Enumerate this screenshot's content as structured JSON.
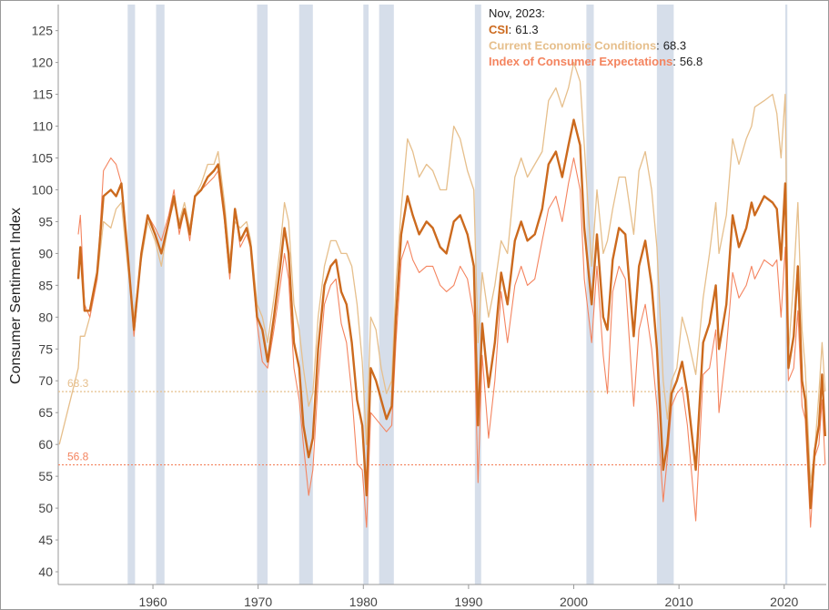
{
  "chart_data": {
    "type": "line",
    "y_label": "Consumer Sentiment Index",
    "xlim": [
      1951,
      2024
    ],
    "ylim": [
      38,
      129.1
    ],
    "xticks": [
      1960,
      1970,
      1980,
      1990,
      2000,
      2010,
      2020
    ],
    "yticks": [
      40,
      45,
      50,
      55,
      60,
      65,
      70,
      75,
      80,
      85,
      90,
      95,
      100,
      105,
      110,
      115,
      120,
      125
    ],
    "recessions": [
      [
        1957.6,
        1958.3
      ],
      [
        1960.3,
        1961.1
      ],
      [
        1969.9,
        1970.9
      ],
      [
        1973.9,
        1975.2
      ],
      [
        1980.0,
        1980.5
      ],
      [
        1981.5,
        1982.9
      ],
      [
        1990.6,
        1991.2
      ],
      [
        2001.2,
        2001.9
      ],
      [
        2007.9,
        2009.5
      ],
      [
        2020.1,
        2020.3
      ]
    ],
    "recession_color": "#d6deea",
    "x": [
      1951.1,
      1952.9,
      1953.1,
      1953.5,
      1954.0,
      1954.7,
      1955.3,
      1956.0,
      1956.5,
      1957.0,
      1957.6,
      1958.2,
      1958.9,
      1959.5,
      1960.2,
      1960.8,
      1961.5,
      1962.0,
      1962.5,
      1963.0,
      1963.5,
      1964.0,
      1964.6,
      1965.2,
      1965.8,
      1966.2,
      1966.8,
      1967.3,
      1967.8,
      1968.3,
      1968.9,
      1969.3,
      1969.9,
      1970.4,
      1970.9,
      1971.5,
      1972.1,
      1972.5,
      1972.9,
      1973.4,
      1973.9,
      1974.3,
      1974.8,
      1975.2,
      1975.7,
      1976.3,
      1976.9,
      1977.4,
      1977.9,
      1978.4,
      1978.9,
      1979.4,
      1979.9,
      1980.3,
      1980.7,
      1981.2,
      1981.7,
      1982.2,
      1982.7,
      1983.1,
      1983.6,
      1984.2,
      1984.7,
      1985.3,
      1986.0,
      1986.6,
      1987.3,
      1987.9,
      1988.6,
      1989.2,
      1989.9,
      1990.5,
      1990.9,
      1991.3,
      1991.9,
      1992.5,
      1993.1,
      1993.7,
      1994.4,
      1995.0,
      1995.6,
      1996.3,
      1997.0,
      1997.6,
      1998.3,
      1998.9,
      1999.5,
      2000.0,
      2000.6,
      2001.0,
      2001.7,
      2002.2,
      2002.8,
      2003.2,
      2003.7,
      2004.3,
      2004.9,
      2005.7,
      2006.2,
      2006.8,
      2007.4,
      2007.9,
      2008.5,
      2008.9,
      2009.3,
      2009.8,
      2010.3,
      2010.8,
      2011.6,
      2012.3,
      2012.9,
      2013.5,
      2013.8,
      2014.5,
      2015.1,
      2015.7,
      2016.4,
      2016.9,
      2017.2,
      2018.1,
      2018.9,
      2019.3,
      2019.7,
      2020.1,
      2020.4,
      2020.9,
      2021.3,
      2021.7,
      2022.0,
      2022.5,
      2022.9,
      2023.3,
      2023.6,
      2023.9
    ],
    "series": [
      {
        "name": "Current Economic Conditions",
        "color": "#e6bf8c",
        "width": 1.3,
        "values": [
          60,
          72,
          77,
          77,
          80,
          86,
          95,
          94,
          97,
          98,
          88,
          80,
          89,
          95,
          92,
          88,
          95,
          98,
          95,
          98,
          94,
          99,
          101,
          104,
          104,
          106,
          98,
          89,
          95,
          94,
          95,
          92,
          82,
          80,
          76,
          83,
          91,
          98,
          95,
          82,
          78,
          72,
          66,
          68,
          80,
          88,
          92,
          92,
          90,
          90,
          88,
          82,
          73,
          60,
          80,
          78,
          72,
          68,
          70,
          85,
          97,
          108,
          106,
          102,
          104,
          103,
          100,
          100,
          110,
          108,
          103,
          100,
          76,
          87,
          80,
          85,
          92,
          90,
          102,
          105,
          102,
          104,
          106,
          114,
          116,
          113,
          116,
          120,
          117,
          107,
          88,
          100,
          90,
          92,
          97,
          102,
          102,
          93,
          103,
          106,
          100,
          91,
          70,
          64,
          70,
          72,
          80,
          77,
          71,
          83,
          90,
          98,
          90,
          96,
          108,
          104,
          108,
          110,
          113,
          114,
          115,
          112,
          105,
          115,
          74,
          86,
          98,
          78,
          72,
          54,
          59,
          68,
          76,
          68.3
        ]
      },
      {
        "name": "Index of Consumer Expectations",
        "color": "#f4845f",
        "width": 1.1,
        "values": [
          null,
          93,
          96,
          82,
          80,
          86,
          103,
          105,
          104,
          101,
          90,
          77,
          90,
          96,
          94,
          92,
          96,
          100,
          93,
          97,
          92,
          99,
          100,
          101,
          102,
          103,
          95,
          86,
          97,
          91,
          93,
          91,
          79,
          73,
          72,
          78,
          85,
          90,
          86,
          72,
          67,
          60,
          52,
          56,
          70,
          82,
          85,
          86,
          79,
          76,
          68,
          57,
          56,
          47,
          65,
          64,
          63,
          62,
          63,
          76,
          89,
          92,
          89,
          87,
          88,
          88,
          85,
          84,
          85,
          88,
          86,
          80,
          54,
          74,
          61,
          70,
          84,
          76,
          85,
          88,
          85,
          86,
          92,
          97,
          99,
          95,
          101,
          105,
          100,
          86,
          76,
          88,
          74,
          68,
          84,
          88,
          86,
          66,
          78,
          82,
          75,
          66,
          51,
          58,
          66,
          68,
          69,
          63,
          48,
          71,
          72,
          78,
          65,
          75,
          87,
          83,
          85,
          88,
          86,
          89,
          88,
          89,
          80,
          91,
          70,
          72,
          81,
          66,
          64,
          47,
          58,
          60,
          67,
          56.8
        ]
      },
      {
        "name": "CSI",
        "color": "#cc6a1e",
        "width": 2.4,
        "values": [
          null,
          86,
          91,
          81,
          81,
          87,
          99,
          100,
          99,
          101,
          90,
          78,
          90,
          96,
          93,
          90,
          95,
          99,
          94,
          97,
          93,
          99,
          100,
          102,
          103,
          104,
          96,
          87,
          97,
          92,
          94,
          91,
          80,
          78,
          73,
          80,
          88,
          94,
          90,
          76,
          72,
          63,
          58,
          61,
          75,
          85,
          88,
          89,
          84,
          82,
          76,
          67,
          63,
          52,
          72,
          70,
          67,
          64,
          66,
          80,
          93,
          99,
          96,
          93,
          95,
          94,
          91,
          90,
          95,
          96,
          93,
          88,
          63,
          79,
          69,
          76,
          87,
          82,
          92,
          95,
          92,
          93,
          97,
          104,
          106,
          102,
          107,
          111,
          107,
          94,
          82,
          93,
          80,
          78,
          89,
          94,
          93,
          77,
          88,
          92,
          85,
          75,
          56,
          60,
          68,
          70,
          73,
          68,
          56,
          76,
          79,
          85,
          75,
          82,
          96,
          91,
          94,
          98,
          96,
          99,
          98,
          97,
          89,
          101,
          72,
          77,
          88,
          70,
          67,
          50,
          59,
          63,
          71,
          61.3
        ]
      }
    ],
    "reference_lines": [
      {
        "value": 68.3,
        "color": "#e6bf8c"
      },
      {
        "value": 56.8,
        "color": "#f4845f"
      }
    ],
    "tooltip": {
      "title": "Nov, 2023:",
      "separator": ":",
      "items": [
        {
          "series": 2,
          "value": 61.3
        },
        {
          "series": 0,
          "value": 68.3
        },
        {
          "series": 1,
          "value": 56.8
        }
      ]
    }
  }
}
